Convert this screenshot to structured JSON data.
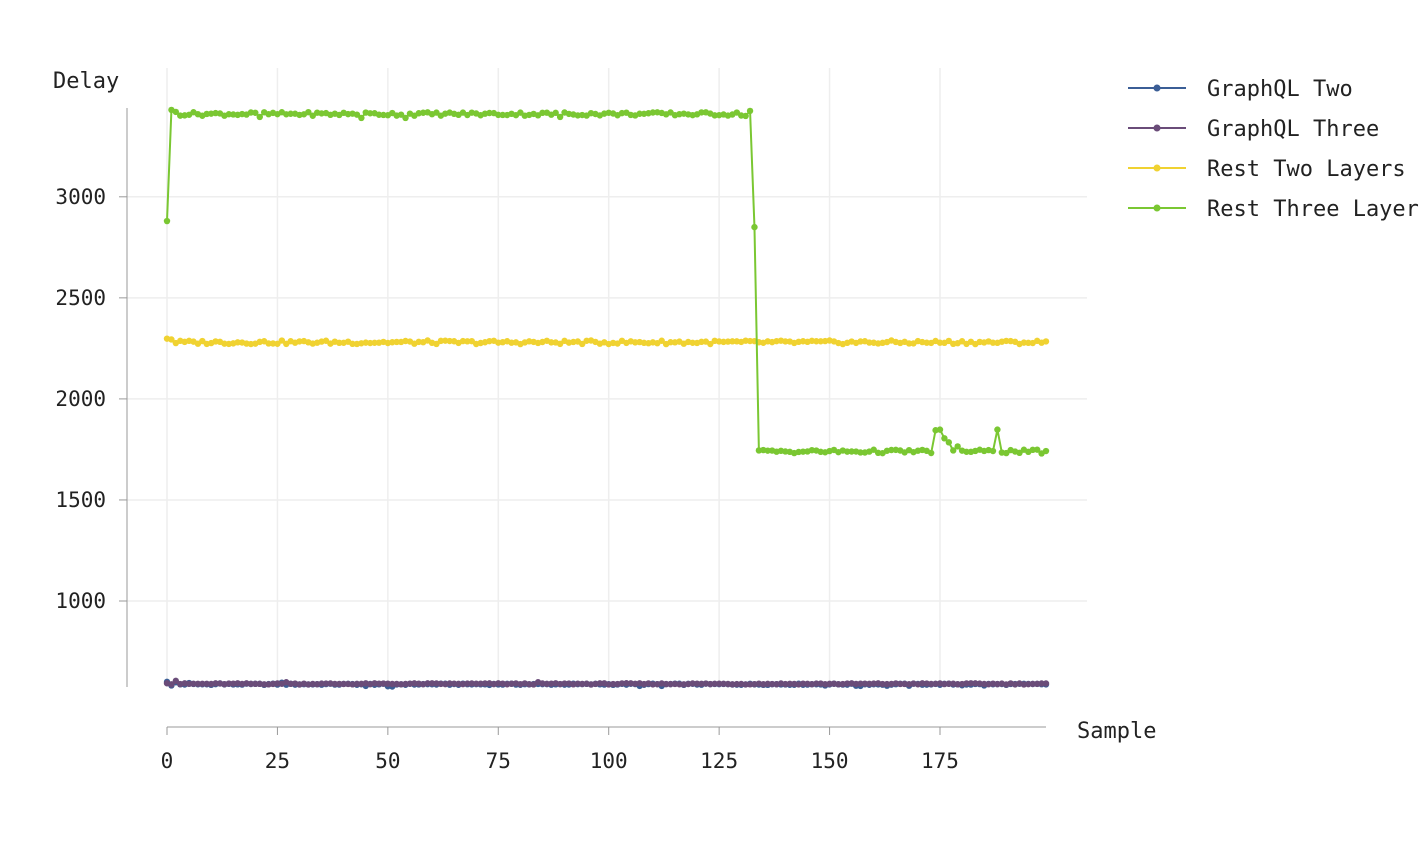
{
  "chart_data": {
    "type": "line",
    "xlabel": "Sample",
    "ylabel": "Delay",
    "xlim": [
      0,
      199
    ],
    "ylim": [
      600,
      3450
    ],
    "x_ticks": [
      0,
      25,
      50,
      75,
      100,
      125,
      150,
      175
    ],
    "y_ticks": [
      1000,
      1500,
      2000,
      2500,
      3000
    ],
    "grid": true,
    "legend_position": "top-right",
    "n_samples": 200,
    "series": [
      {
        "name": "GraphQL Two",
        "color": "#3b5e96",
        "segments": [
          [
            0,
            199,
            588
          ]
        ],
        "overrides": {
          "0": 600,
          "1": 582,
          "2": 598,
          "5": 594,
          "12": 592,
          "26": 596,
          "45": 580,
          "50": 578,
          "51": 577,
          "107": 580,
          "112": 580,
          "149": 582,
          "156": 581,
          "157": 580,
          "163": 581,
          "168": 581,
          "180": 583,
          "185": 582
        }
      },
      {
        "name": "GraphQL Three",
        "color": "#6a4c79",
        "segments": [
          [
            0,
            199,
            590
          ]
        ],
        "overrides": {
          "0": 593,
          "2": 605,
          "27": 598,
          "84": 598
        }
      },
      {
        "name": "Rest Two Layers",
        "color": "#f0d231",
        "segments": [
          [
            0,
            199,
            2280
          ]
        ],
        "overrides": {
          "0": 2298,
          "1": 2294
        }
      },
      {
        "name": "Rest Three Layers",
        "color": "#7ac732",
        "segments": [
          [
            1,
            132,
            3410
          ],
          [
            134,
            199,
            1740
          ]
        ],
        "overrides": {
          "0": 2880,
          "1": 3430,
          "2": 3420,
          "21": 3395,
          "44": 3390,
          "54": 3390,
          "89": 3395,
          "131": 3400,
          "132": 3425,
          "133": 2850,
          "134": 1745,
          "174": 1845,
          "175": 1848,
          "176": 1805,
          "177": 1785,
          "178": 1745,
          "179": 1765,
          "187": 1742,
          "188": 1848,
          "198": 1730,
          "199": 1742
        }
      }
    ]
  },
  "colors": {
    "grid": "#eeeeee",
    "axis": "#999999",
    "text": "#222222"
  }
}
